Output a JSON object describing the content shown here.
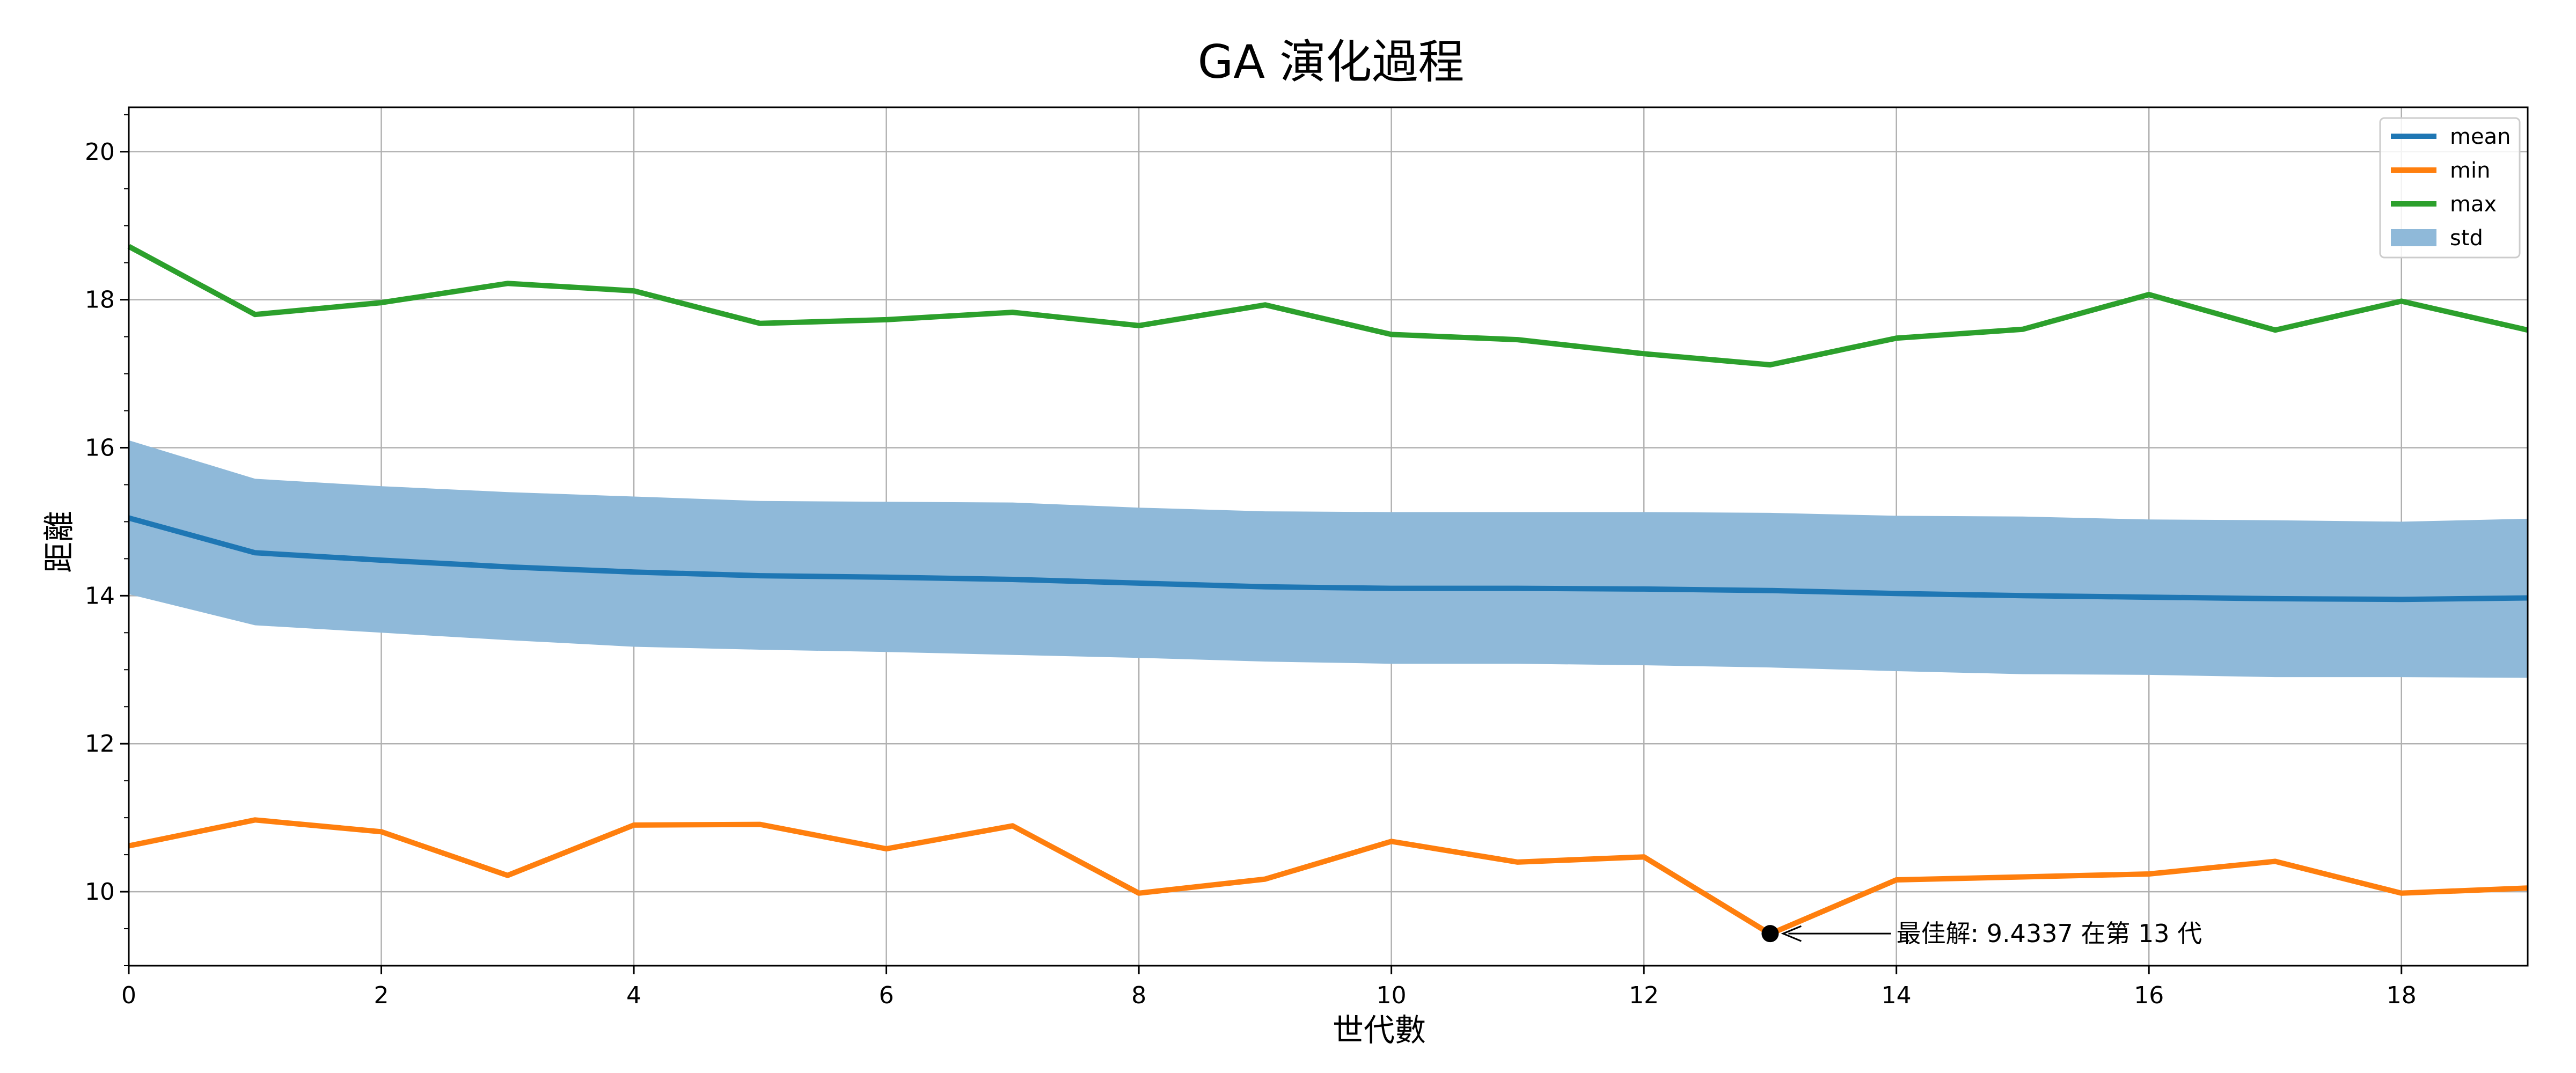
{
  "chart_data": {
    "type": "line",
    "title": "GA 演化過程",
    "xlabel": "世代數",
    "ylabel": "距離",
    "xlim": [
      0,
      19
    ],
    "ylim": [
      9.0,
      20.6
    ],
    "xticks": [
      0,
      2,
      4,
      6,
      8,
      10,
      12,
      14,
      16,
      18
    ],
    "yticks": [
      10,
      12,
      14,
      16,
      18,
      20
    ],
    "grid": true,
    "legend_position": "top-right",
    "x": [
      0,
      1,
      2,
      3,
      4,
      5,
      6,
      7,
      8,
      9,
      10,
      11,
      12,
      13,
      14,
      15,
      16,
      17,
      18,
      19
    ],
    "series": [
      {
        "name": "mean",
        "color": "#1f77b4",
        "values": [
          15.05,
          14.58,
          14.48,
          14.39,
          14.32,
          14.27,
          14.25,
          14.22,
          14.17,
          14.12,
          14.1,
          14.1,
          14.09,
          14.07,
          14.03,
          14.0,
          13.98,
          13.96,
          13.95,
          13.97
        ]
      },
      {
        "name": "min",
        "color": "#ff7f0e",
        "values": [
          10.62,
          10.97,
          10.81,
          10.22,
          10.9,
          10.91,
          10.58,
          10.89,
          9.98,
          10.17,
          10.68,
          10.4,
          10.47,
          9.43,
          10.16,
          10.2,
          10.24,
          10.41,
          9.98,
          10.05
        ]
      },
      {
        "name": "max",
        "color": "#2ca02c",
        "values": [
          18.72,
          17.8,
          17.96,
          18.22,
          18.12,
          17.68,
          17.73,
          17.83,
          17.65,
          17.93,
          17.53,
          17.46,
          17.27,
          17.12,
          17.48,
          17.6,
          18.07,
          17.59,
          17.98,
          17.59
        ]
      }
    ],
    "band": {
      "name": "std",
      "color": "#8fb9d9",
      "upper": [
        16.1,
        15.58,
        15.48,
        15.4,
        15.34,
        15.28,
        15.27,
        15.26,
        15.19,
        15.14,
        15.13,
        15.13,
        15.13,
        15.12,
        15.08,
        15.07,
        15.03,
        15.02,
        15.0,
        15.04
      ],
      "lower": [
        14.02,
        13.6,
        13.5,
        13.4,
        13.31,
        13.27,
        13.24,
        13.2,
        13.16,
        13.11,
        13.08,
        13.08,
        13.06,
        13.03,
        12.98,
        12.94,
        12.93,
        12.9,
        12.9,
        12.89
      ]
    },
    "annotation": {
      "text": "最佳解: 9.4337 在第 13 代",
      "x": 13,
      "y": 9.4337,
      "text_x": 14.0,
      "text_y": 9.4337
    }
  }
}
